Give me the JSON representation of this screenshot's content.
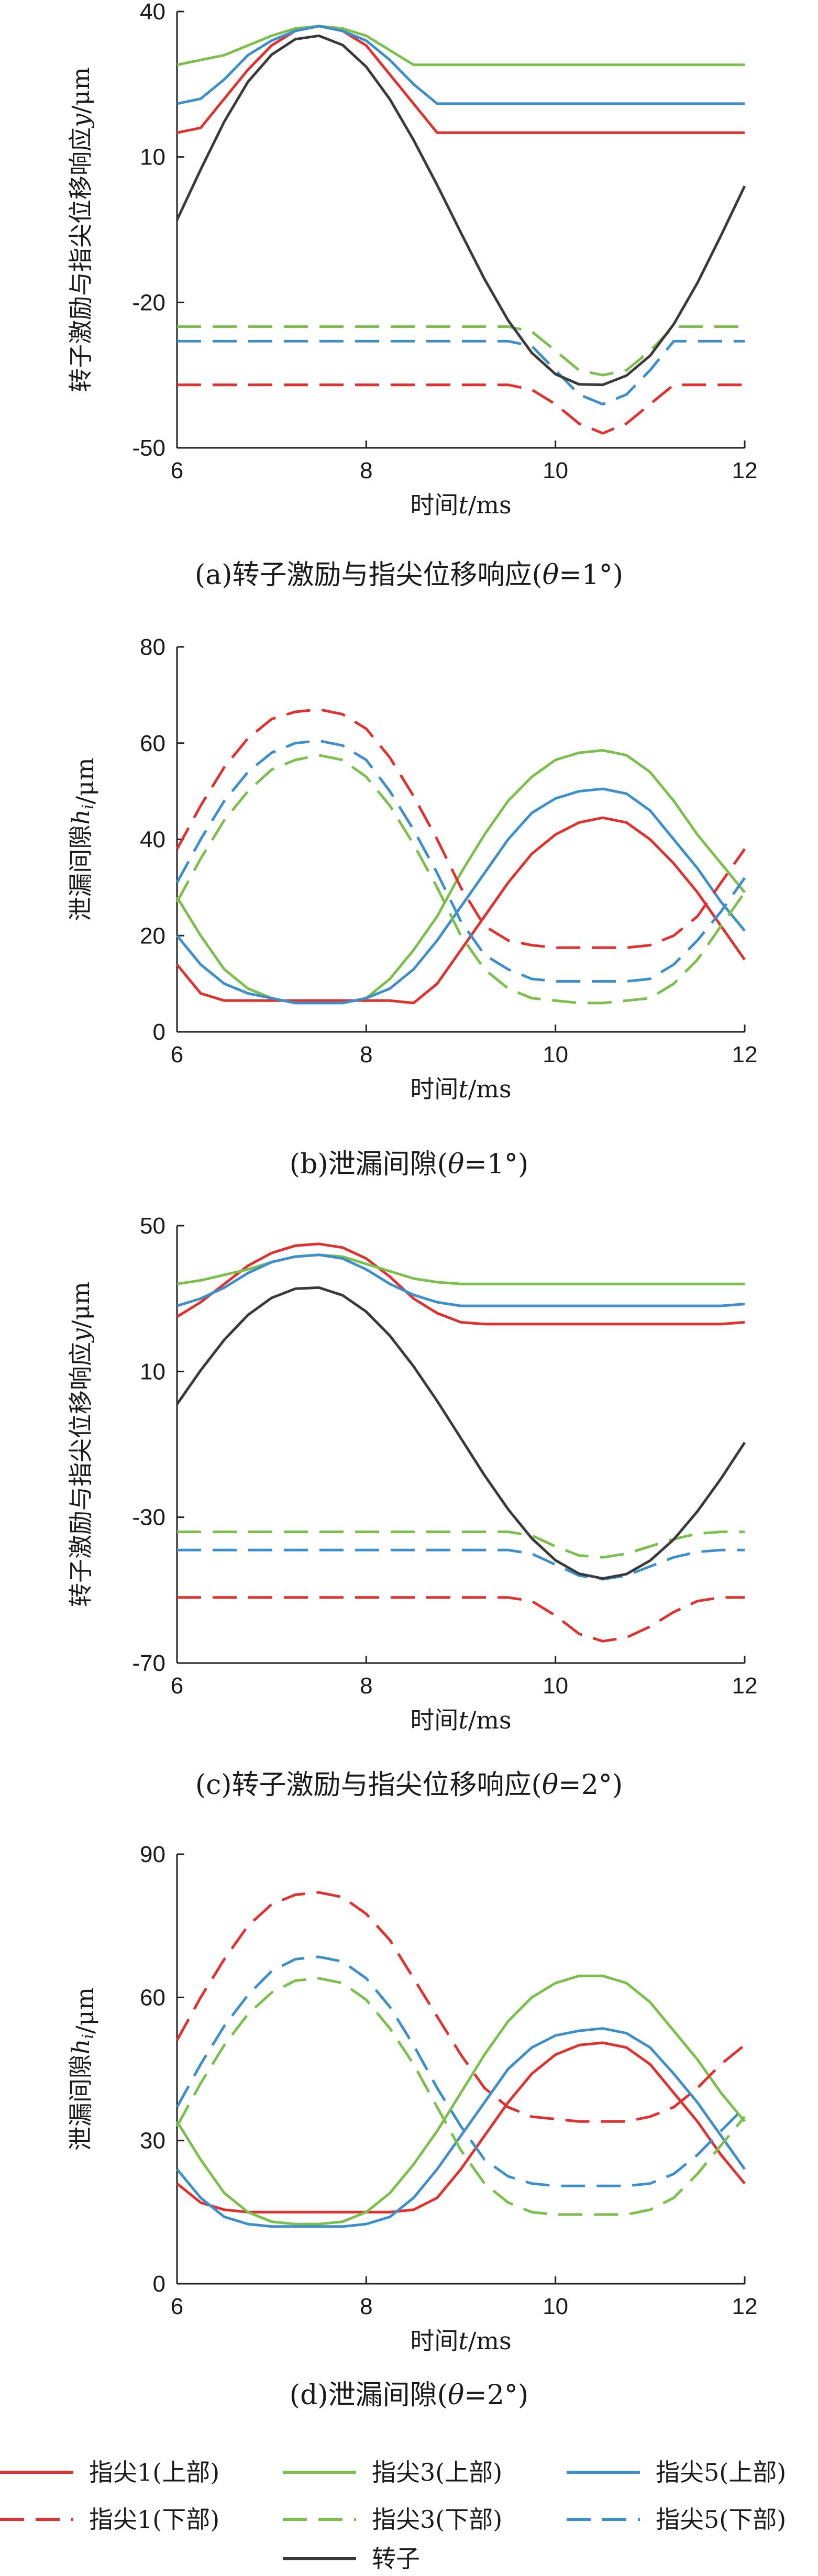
{
  "legend": {
    "items": [
      {
        "name": "指尖1(上部)",
        "color": "#e0312e",
        "dash": "solid"
      },
      {
        "name": "指尖3(上部)",
        "color": "#7cbf4c",
        "dash": "solid"
      },
      {
        "name": "指尖5(上部)",
        "color": "#3d8fcb",
        "dash": "solid"
      },
      {
        "name": "指尖1(下部)",
        "color": "#e0312e",
        "dash": "dashed"
      },
      {
        "name": "指尖3(下部)",
        "color": "#7cbf4c",
        "dash": "dashed"
      },
      {
        "name": "指尖5(下部)",
        "color": "#3d8fcb",
        "dash": "dashed"
      },
      {
        "name": "转子",
        "color": "#3a3a3a",
        "dash": "solid"
      }
    ]
  },
  "chart_data": [
    {
      "type": "line",
      "panel": "a",
      "caption": "(a)转子激励与指尖位移响应(θ=1°)",
      "xlabel": "时间t/ms",
      "ylabel": "转子激励与指尖位移响应y/μm",
      "xlim": [
        6,
        12
      ],
      "ylim": [
        -50,
        40
      ],
      "xticks": [
        6,
        8,
        10,
        12
      ],
      "yticks": [
        -50,
        -20,
        10,
        40
      ],
      "x": [
        6.0,
        6.25,
        6.5,
        6.75,
        7.0,
        7.25,
        7.5,
        7.75,
        8.0,
        8.25,
        8.5,
        8.75,
        9.0,
        9.25,
        9.5,
        9.75,
        10.0,
        10.25,
        10.5,
        10.75,
        11.0,
        11.25,
        11.5,
        11.75,
        12.0
      ],
      "series": [
        {
          "name": "指尖1(上部)",
          "values": [
            15,
            16,
            22,
            28,
            33,
            36,
            37,
            36,
            33,
            27,
            21,
            15,
            15,
            15,
            15,
            15,
            15,
            15,
            15,
            15,
            15,
            15,
            15,
            15,
            15
          ]
        },
        {
          "name": "指尖3(上部)",
          "values": [
            29,
            30,
            31,
            33,
            35,
            36.5,
            37,
            36.5,
            35,
            32,
            29,
            29,
            29,
            29,
            29,
            29,
            29,
            29,
            29,
            29,
            29,
            29,
            29,
            29,
            29
          ]
        },
        {
          "name": "指尖5(上部)",
          "values": [
            21,
            22,
            26,
            31,
            34,
            36,
            37,
            36,
            34,
            30,
            25,
            21,
            21,
            21,
            21,
            21,
            21,
            21,
            21,
            21,
            21,
            21,
            21,
            21,
            21
          ]
        },
        {
          "name": "指尖1(下部)",
          "values": [
            -37,
            -37,
            -37,
            -37,
            -37,
            -37,
            -37,
            -37,
            -37,
            -37,
            -37,
            -37,
            -37,
            -37,
            -37,
            -38,
            -41,
            -45,
            -47,
            -45,
            -41,
            -37,
            -37,
            -37,
            -37
          ]
        },
        {
          "name": "指尖3(下部)",
          "values": [
            -25,
            -25,
            -25,
            -25,
            -25,
            -25,
            -25,
            -25,
            -25,
            -25,
            -25,
            -25,
            -25,
            -25,
            -25,
            -26,
            -30,
            -34,
            -35,
            -34,
            -30,
            -25,
            -25,
            -25,
            -25
          ]
        },
        {
          "name": "指尖5(下部)",
          "values": [
            -28,
            -28,
            -28,
            -28,
            -28,
            -28,
            -28,
            -28,
            -28,
            -28,
            -28,
            -28,
            -28,
            -28,
            -28,
            -29,
            -34,
            -39,
            -41,
            -39,
            -34,
            -28,
            -28,
            -28,
            -28
          ]
        },
        {
          "name": "转子",
          "values": [
            -3,
            7.4,
            17.3,
            25.5,
            31.1,
            34.3,
            35,
            33.1,
            28.6,
            21.9,
            13.5,
            4.2,
            -5.6,
            -15.2,
            -23.7,
            -30.4,
            -34.8,
            -36.9,
            -37,
            -35.1,
            -31,
            -24.5,
            -16,
            -6.2,
            4
          ]
        }
      ]
    },
    {
      "type": "line",
      "panel": "b",
      "caption": "(b)泄漏间隙(θ=1°)",
      "xlabel": "时间t/ms",
      "ylabel": "泄漏间隙hi/μm",
      "xlim": [
        6,
        12
      ],
      "ylim": [
        0,
        80
      ],
      "xticks": [
        6,
        8,
        10,
        12
      ],
      "yticks": [
        0,
        20,
        40,
        60,
        80
      ],
      "x": [
        6.0,
        6.25,
        6.5,
        6.75,
        7.0,
        7.25,
        7.5,
        7.75,
        8.0,
        8.25,
        8.5,
        8.75,
        9.0,
        9.25,
        9.5,
        9.75,
        10.0,
        10.25,
        10.5,
        10.75,
        11.0,
        11.25,
        11.5,
        11.75,
        12.0
      ],
      "series": [
        {
          "name": "指尖1(上部)",
          "values": [
            14,
            8,
            6.5,
            6.5,
            6.5,
            6.5,
            6.5,
            6.5,
            6.5,
            6.5,
            6,
            10,
            17,
            24,
            31,
            37,
            41,
            43.5,
            44.5,
            43.5,
            40,
            35,
            29,
            22,
            15
          ]
        },
        {
          "name": "指尖3(上部)",
          "values": [
            28,
            20,
            13,
            9,
            7,
            6,
            6,
            6,
            7,
            11,
            17,
            24,
            33,
            41,
            48,
            53,
            56.5,
            58,
            58.5,
            57.5,
            54,
            48,
            41,
            35,
            29
          ]
        },
        {
          "name": "指尖5(上部)",
          "values": [
            20,
            14,
            10,
            8,
            7,
            6,
            6,
            6,
            7,
            9,
            13,
            19,
            26,
            33,
            40,
            45.5,
            48.5,
            50,
            50.5,
            49.5,
            46,
            40,
            34,
            27,
            21
          ]
        },
        {
          "name": "指尖1(下部)",
          "values": [
            38,
            47,
            55,
            61,
            65,
            66.5,
            67,
            66,
            63,
            57,
            49,
            40,
            30,
            22,
            19,
            18,
            17.5,
            17.5,
            17.5,
            17.5,
            18,
            20,
            24,
            31,
            38
          ]
        },
        {
          "name": "指尖3(下部)",
          "values": [
            27,
            36,
            44,
            50,
            54.5,
            56.5,
            57.5,
            56.5,
            53,
            47,
            39,
            30,
            20,
            13,
            9,
            7,
            6.5,
            6,
            6,
            6.5,
            7,
            10,
            15,
            22,
            29
          ]
        },
        {
          "name": "指尖5(下部)",
          "values": [
            31,
            40,
            48,
            54,
            58,
            60,
            60.5,
            59.5,
            56.5,
            50,
            42,
            33,
            23,
            16,
            13,
            11,
            10.5,
            10.5,
            10.5,
            10.5,
            11,
            14,
            19,
            25,
            32
          ]
        }
      ]
    },
    {
      "type": "line",
      "panel": "c",
      "caption": "(c)转子激励与指尖位移响应(θ=2°)",
      "xlabel": "时间t/ms",
      "ylabel": "转子激励与指尖位移响应y/μm",
      "xlim": [
        6,
        12
      ],
      "ylim": [
        -70,
        50
      ],
      "xticks": [
        6,
        8,
        10,
        12
      ],
      "yticks": [
        -70,
        -30,
        10,
        50
      ],
      "x": [
        6.0,
        6.25,
        6.5,
        6.75,
        7.0,
        7.25,
        7.5,
        7.75,
        8.0,
        8.25,
        8.5,
        8.75,
        9.0,
        9.25,
        9.5,
        9.75,
        10.0,
        10.25,
        10.5,
        10.75,
        11.0,
        11.25,
        11.5,
        11.75,
        12.0
      ],
      "series": [
        {
          "name": "指尖1(上部)",
          "values": [
            25,
            29,
            34,
            39,
            42.5,
            44.5,
            45,
            44,
            41,
            36,
            30,
            26,
            23.5,
            23,
            23,
            23,
            23,
            23,
            23,
            23,
            23,
            23,
            23,
            23,
            23.5
          ]
        },
        {
          "name": "指尖3(上部)",
          "values": [
            34,
            35,
            36.5,
            38,
            40,
            41.5,
            42,
            41.5,
            39.5,
            37.5,
            35.5,
            34.5,
            34,
            34,
            34,
            34,
            34,
            34,
            34,
            34,
            34,
            34,
            34,
            34,
            34
          ]
        },
        {
          "name": "指尖5(上部)",
          "values": [
            28,
            30,
            33,
            37,
            40,
            41.5,
            42,
            41,
            38,
            34,
            31,
            29,
            28,
            28,
            28,
            28,
            28,
            28,
            28,
            28,
            28,
            28,
            28,
            28,
            28.5
          ]
        },
        {
          "name": "指尖1(下部)",
          "values": [
            -52,
            -52,
            -52,
            -52,
            -52,
            -52,
            -52,
            -52,
            -52,
            -52,
            -52,
            -52,
            -52,
            -52,
            -52,
            -53,
            -57,
            -62,
            -64,
            -63,
            -60,
            -56,
            -53,
            -52,
            -52
          ]
        },
        {
          "name": "指尖3(下部)",
          "values": [
            -34,
            -34,
            -34,
            -34,
            -34,
            -34,
            -34,
            -34,
            -34,
            -34,
            -34,
            -34,
            -34,
            -34,
            -34,
            -35,
            -38,
            -40.5,
            -41,
            -40,
            -38,
            -36,
            -34.5,
            -34,
            -34
          ]
        },
        {
          "name": "指尖5(下部)",
          "values": [
            -39,
            -39,
            -39,
            -39,
            -39,
            -39,
            -39,
            -39,
            -39,
            -39,
            -39,
            -39,
            -39,
            -39,
            -39,
            -40,
            -43,
            -46,
            -47,
            -46,
            -43.5,
            -41,
            -39.5,
            -39,
            -39
          ]
        },
        {
          "name": "转子",
          "values": [
            1,
            10.3,
            18.7,
            25.5,
            30.2,
            32.7,
            33,
            30.9,
            26.4,
            19.8,
            11.4,
            1.9,
            -8.3,
            -18.5,
            -27.8,
            -35.8,
            -41.8,
            -45.5,
            -46.8,
            -45.6,
            -41.9,
            -36.1,
            -28.4,
            -19.4,
            -9.5
          ]
        }
      ]
    },
    {
      "type": "line",
      "panel": "d",
      "caption": "(d)泄漏间隙(θ=2°)",
      "xlabel": "时间t/ms",
      "ylabel": "泄漏间隙hi/μm",
      "xlim": [
        6,
        12
      ],
      "ylim": [
        0,
        90
      ],
      "xticks": [
        6,
        8,
        10,
        12
      ],
      "yticks": [
        0,
        30,
        60,
        90
      ],
      "x": [
        6.0,
        6.25,
        6.5,
        6.75,
        7.0,
        7.25,
        7.5,
        7.75,
        8.0,
        8.25,
        8.5,
        8.75,
        9.0,
        9.25,
        9.5,
        9.75,
        10.0,
        10.25,
        10.5,
        10.75,
        11.0,
        11.25,
        11.5,
        11.75,
        12.0
      ],
      "series": [
        {
          "name": "指尖1(上部)",
          "values": [
            21,
            17,
            15.5,
            15,
            15,
            15,
            15,
            15,
            15,
            15,
            15.5,
            18,
            24,
            31,
            38,
            44,
            48,
            50,
            50.5,
            49.5,
            46,
            40,
            34,
            27,
            21
          ]
        },
        {
          "name": "指尖3(上部)",
          "values": [
            34,
            26,
            19,
            15,
            13,
            12.5,
            12.5,
            13,
            15,
            19,
            25,
            32,
            40,
            48,
            55,
            60,
            63,
            64.5,
            64.5,
            63,
            59,
            53,
            47,
            40,
            34
          ]
        },
        {
          "name": "指尖5(上部)",
          "values": [
            24,
            18,
            14,
            12.5,
            12,
            12,
            12,
            12,
            12.5,
            14,
            18,
            24,
            31,
            38,
            45,
            49.5,
            52,
            53,
            53.5,
            52.5,
            49.5,
            44,
            38,
            31,
            24
          ]
        },
        {
          "name": "指尖1(下部)",
          "values": [
            51,
            60,
            68,
            75,
            79.5,
            81.5,
            82,
            81,
            77.5,
            72,
            64,
            56,
            48,
            41,
            37,
            35,
            34.5,
            34,
            34,
            34,
            35,
            37,
            41,
            46,
            50
          ]
        },
        {
          "name": "指尖3(下部)",
          "values": [
            33,
            42,
            50,
            56.5,
            61,
            63.5,
            64,
            63,
            59.5,
            53.5,
            46,
            37,
            28,
            21,
            17,
            15,
            14.5,
            14.5,
            14.5,
            14.5,
            15.5,
            18,
            23,
            29,
            35
          ]
        },
        {
          "name": "指尖5(下部)",
          "values": [
            37,
            46,
            54,
            60.5,
            65.5,
            68,
            68.5,
            67.5,
            64,
            58,
            50,
            41,
            33,
            26,
            22.5,
            21,
            20.5,
            20.5,
            20.5,
            20.5,
            21,
            23,
            27,
            32,
            37
          ]
        }
      ]
    }
  ]
}
